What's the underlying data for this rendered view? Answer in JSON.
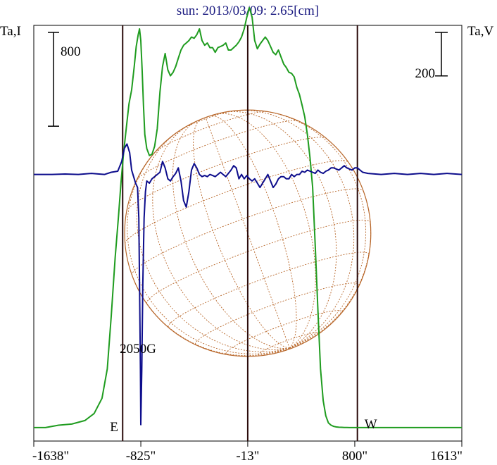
{
  "chart_data": {
    "type": "line",
    "title": "sun: 2013/03/09: 2.65[cm]",
    "left_axis_label": "Ta,I",
    "right_axis_label": "Ta,V",
    "xlim": [
      -1638,
      1613
    ],
    "x_ticks": [
      {
        "value": -1638,
        "label": "-1638\""
      },
      {
        "value": -825,
        "label": "-825\""
      },
      {
        "value": -13,
        "label": "-13\""
      },
      {
        "value": 800,
        "label": "800\""
      },
      {
        "value": 1613,
        "label": "1613\""
      }
    ],
    "vertical_lines": [
      -963,
      -13,
      820
    ],
    "scale_bars": [
      {
        "axis": "left",
        "value": 800,
        "label": "800"
      },
      {
        "axis": "right",
        "value": 200,
        "label": "200"
      }
    ],
    "annotations": [
      {
        "text": "2050G",
        "x": -825
      },
      {
        "text": "E",
        "x": -963
      },
      {
        "text": "W",
        "x": 820
      }
    ],
    "solar_disk": {
      "center_x": -13,
      "radius_arcsec": 935,
      "color": "#b8672a"
    },
    "series": [
      {
        "axis": "left",
        "color": "#1f9c1f",
        "ylim": [
          -115,
          3430
        ],
        "x": [
          -1638,
          -1550,
          -1450,
          -1350,
          -1250,
          -1180,
          -1120,
          -1080,
          -1050,
          -1020,
          -995,
          -975,
          -955,
          -935,
          -915,
          -895,
          -875,
          -860,
          -845,
          -835,
          -825,
          -815,
          -805,
          -795,
          -780,
          -760,
          -740,
          -720,
          -700,
          -680,
          -660,
          -640,
          -620,
          -600,
          -580,
          -560,
          -540,
          -520,
          -500,
          -480,
          -460,
          -440,
          -420,
          -400,
          -380,
          -360,
          -340,
          -320,
          -300,
          -280,
          -260,
          -240,
          -220,
          -200,
          -180,
          -160,
          -140,
          -120,
          -100,
          -80,
          -60,
          -40,
          -20,
          0,
          20,
          40,
          60,
          80,
          100,
          120,
          140,
          160,
          180,
          200,
          220,
          240,
          260,
          280,
          300,
          320,
          340,
          360,
          380,
          400,
          420,
          440,
          460,
          480,
          500,
          520,
          540,
          560,
          580,
          600,
          620,
          640,
          660,
          680,
          700,
          720,
          740,
          760,
          780,
          800,
          820,
          840,
          860,
          880,
          900,
          920,
          950,
          990,
          1050,
          1150,
          1300,
          1450,
          1613
        ],
        "y": [
          0,
          0,
          20,
          30,
          60,
          120,
          250,
          500,
          950,
          1450,
          1800,
          2100,
          2350,
          2560,
          2760,
          2880,
          3080,
          3250,
          3350,
          3400,
          3300,
          3050,
          2750,
          2500,
          2380,
          2320,
          2330,
          2400,
          2550,
          2860,
          3080,
          3190,
          3050,
          3000,
          3030,
          3080,
          3150,
          3220,
          3260,
          3280,
          3300,
          3330,
          3320,
          3350,
          3400,
          3300,
          3260,
          3280,
          3240,
          3240,
          3200,
          3240,
          3250,
          3260,
          3280,
          3220,
          3220,
          3240,
          3260,
          3290,
          3330,
          3400,
          3500,
          3580,
          3500,
          3300,
          3230,
          3270,
          3300,
          3330,
          3300,
          3250,
          3200,
          3180,
          3220,
          3160,
          3100,
          3070,
          3030,
          3020,
          2990,
          2900,
          2840,
          2750,
          2650,
          2500,
          2300,
          2050,
          1550,
          1000,
          500,
          230,
          100,
          40,
          20,
          10,
          5,
          3,
          2,
          1,
          1,
          0,
          0,
          0,
          0,
          0,
          0,
          0,
          0,
          0,
          0,
          0,
          0,
          0,
          0,
          0,
          0
        ]
      },
      {
        "axis": "right",
        "color": "#0d0d8c",
        "ylim": [
          -1225,
          685
        ],
        "x": [
          -1638,
          -1500,
          -1400,
          -1300,
          -1200,
          -1100,
          -1050,
          -1000,
          -970,
          -950,
          -930,
          -910,
          -895,
          -880,
          -865,
          -850,
          -840,
          -835,
          -828,
          -825,
          -818,
          -810,
          -800,
          -790,
          -780,
          -760,
          -740,
          -720,
          -700,
          -680,
          -660,
          -640,
          -620,
          -600,
          -580,
          -560,
          -540,
          -520,
          -500,
          -480,
          -460,
          -440,
          -420,
          -400,
          -380,
          -360,
          -340,
          -320,
          -300,
          -280,
          -260,
          -240,
          -220,
          -200,
          -180,
          -160,
          -140,
          -120,
          -100,
          -80,
          -60,
          -40,
          -20,
          0,
          20,
          40,
          60,
          80,
          100,
          120,
          140,
          160,
          180,
          200,
          220,
          240,
          260,
          280,
          300,
          320,
          340,
          360,
          380,
          400,
          420,
          440,
          460,
          480,
          500,
          520,
          540,
          560,
          580,
          600,
          620,
          640,
          660,
          680,
          700,
          720,
          740,
          760,
          780,
          800,
          820,
          840,
          860,
          900,
          1000,
          1100,
          1200,
          1300,
          1400,
          1500,
          1613
        ],
        "y": [
          0,
          0,
          2,
          0,
          5,
          0,
          10,
          15,
          60,
          120,
          140,
          100,
          20,
          -10,
          -40,
          -60,
          -200,
          -500,
          -900,
          -1150,
          -900,
          -500,
          -200,
          -80,
          -30,
          -40,
          -20,
          -10,
          0,
          10,
          60,
          30,
          -20,
          -30,
          -10,
          5,
          30,
          -30,
          -120,
          -150,
          -80,
          20,
          50,
          30,
          0,
          -10,
          -5,
          -10,
          0,
          -5,
          -10,
          0,
          10,
          0,
          -10,
          5,
          20,
          40,
          30,
          -20,
          0,
          -20,
          -5,
          -20,
          -30,
          -20,
          -40,
          -60,
          -40,
          -20,
          0,
          -30,
          -60,
          -45,
          -20,
          -10,
          -10,
          -20,
          -20,
          0,
          -10,
          0,
          0,
          15,
          10,
          20,
          15,
          10,
          5,
          20,
          10,
          5,
          15,
          20,
          30,
          30,
          25,
          20,
          30,
          40,
          30,
          25,
          20,
          30,
          30,
          20,
          10,
          5,
          0,
          5,
          0,
          5,
          0,
          5,
          0
        ]
      }
    ]
  }
}
